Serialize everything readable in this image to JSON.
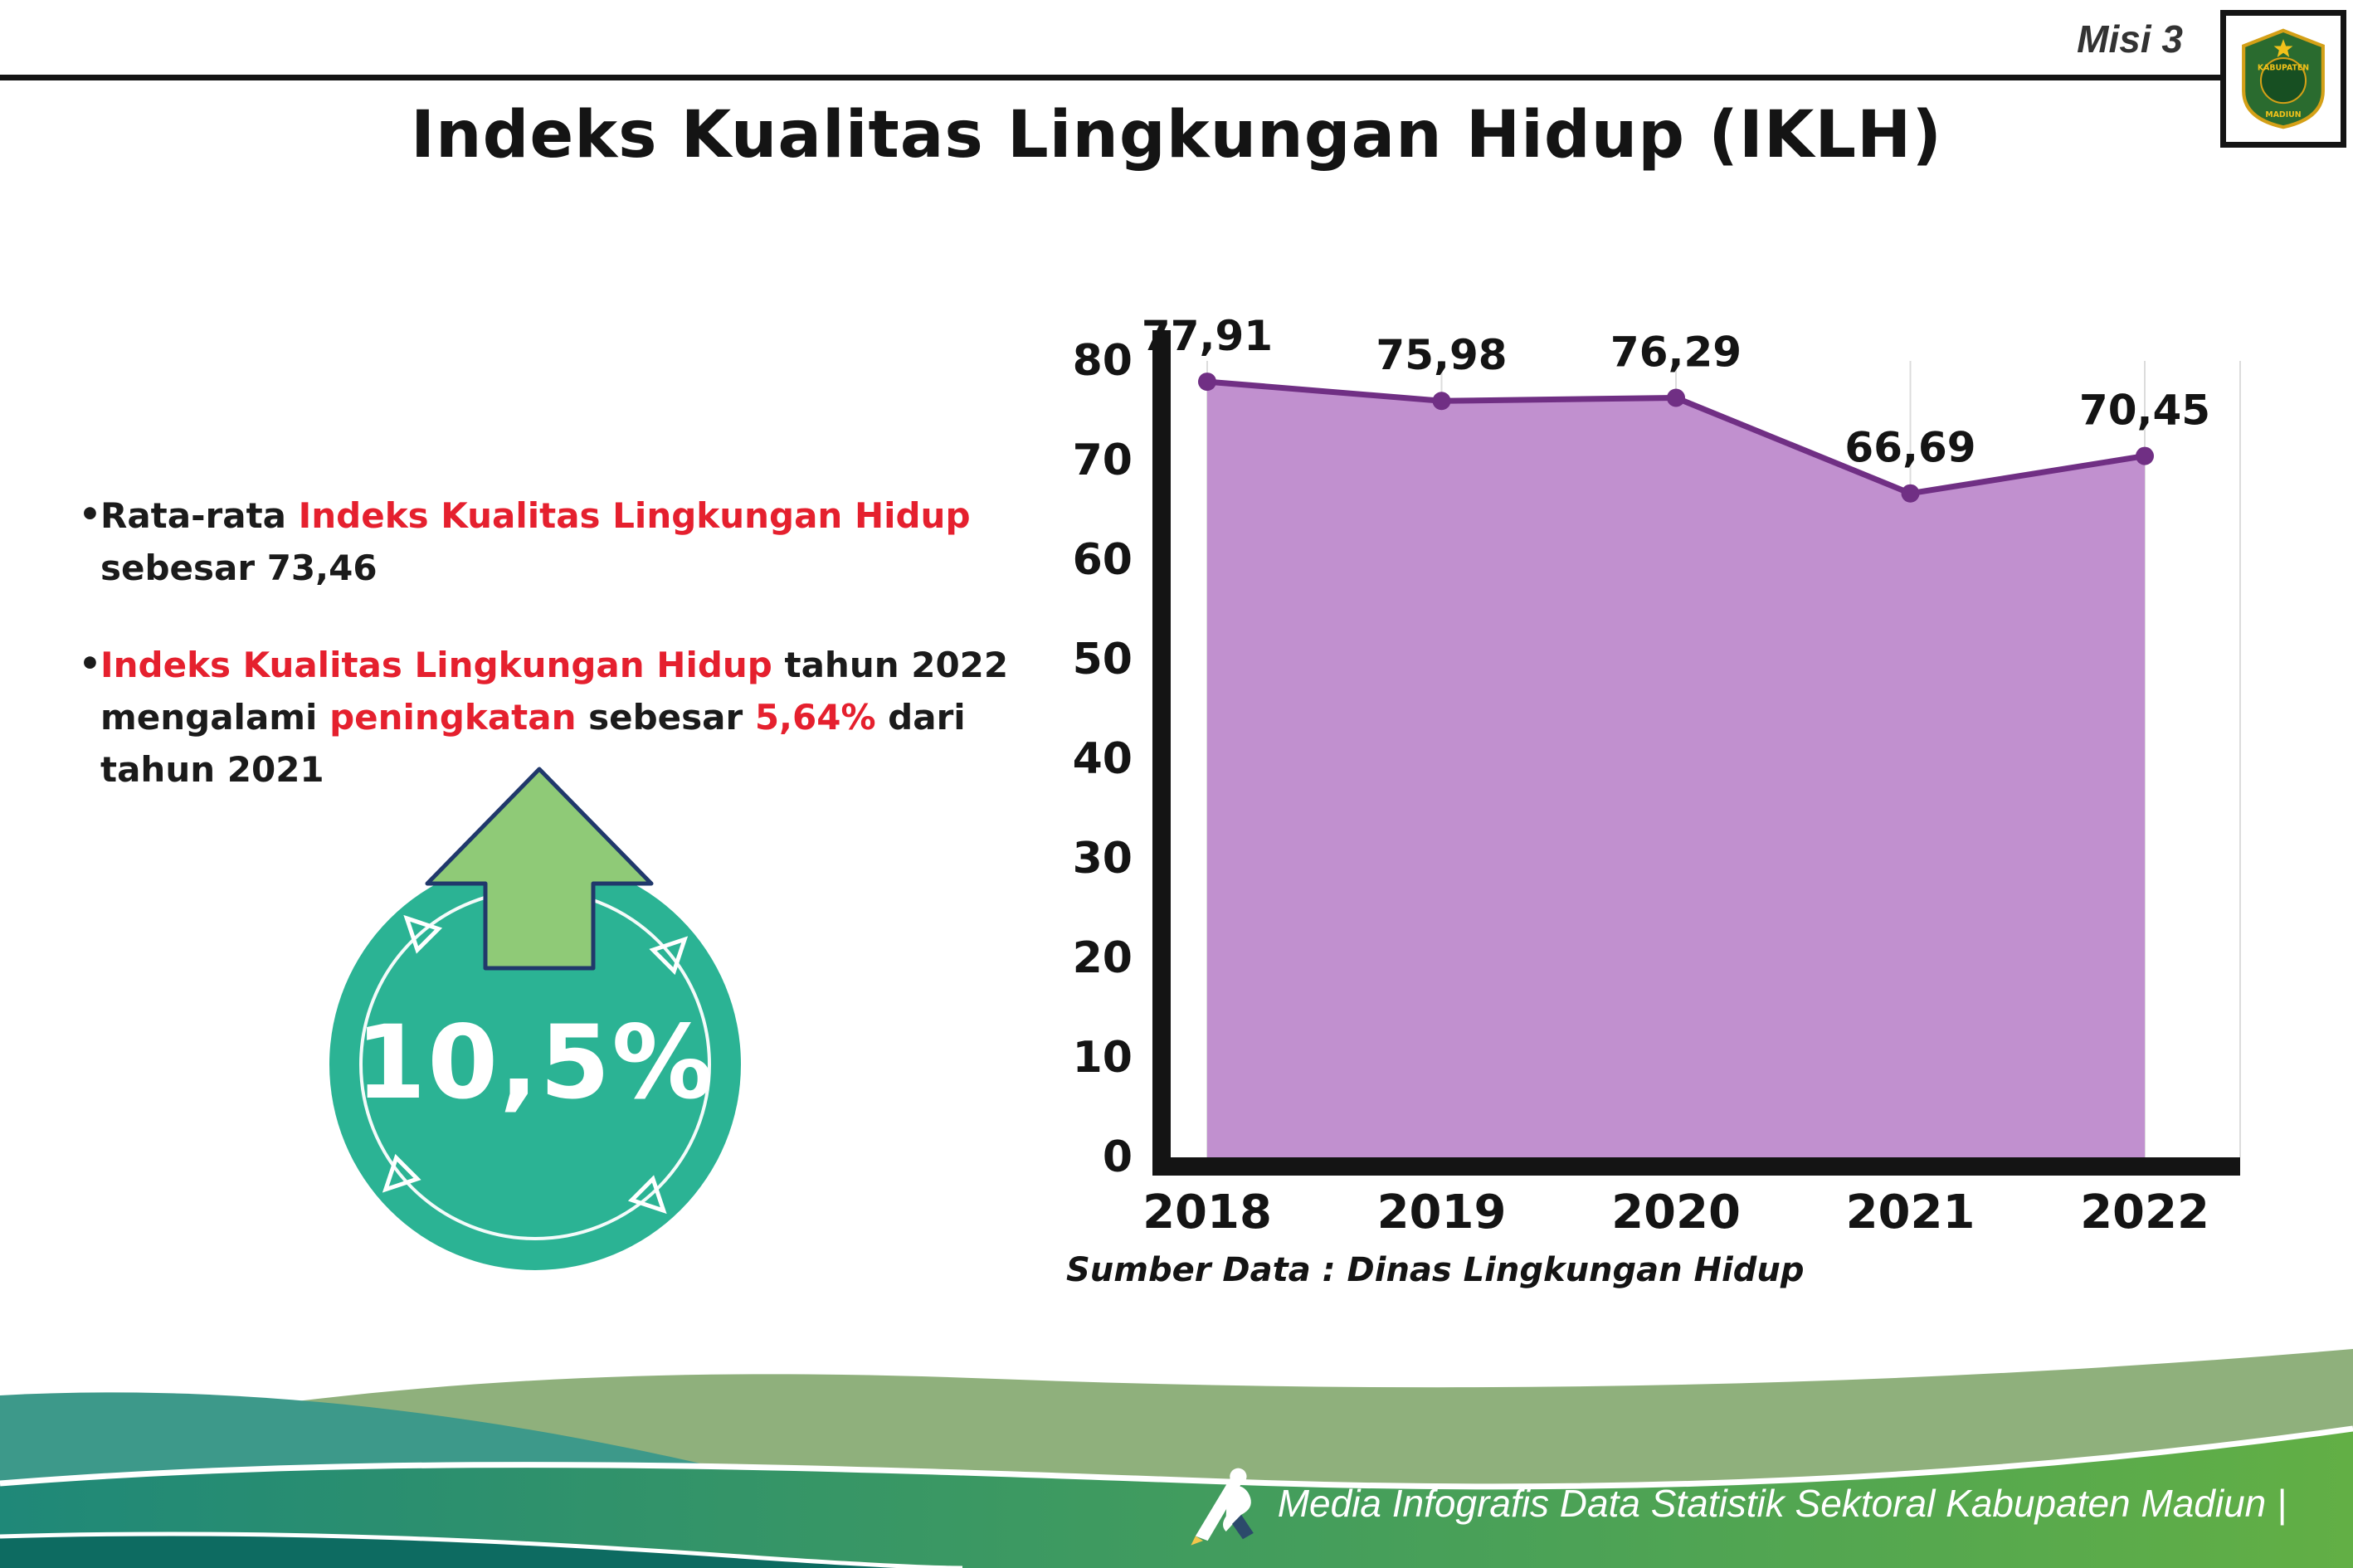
{
  "header": {
    "misi": "Misi 3"
  },
  "title": "Indeks Kualitas Lingkungan Hidup (IKLH)",
  "logo": {
    "top_text": "KABUPATEN",
    "bottom_text": "MADIUN"
  },
  "bullets": [
    {
      "lines": [
        {
          "segments": [
            {
              "t": "Rata-rata ",
              "c": "black"
            },
            {
              "t": "Indeks Kualitas Lingkungan Hidup",
              "c": "red"
            }
          ]
        },
        {
          "segments": [
            {
              "t": "sebesar 73,46",
              "c": "black"
            }
          ]
        }
      ]
    },
    {
      "lines": [
        {
          "segments": [
            {
              "t": "Indeks Kualitas Lingkungan Hidup",
              "c": "red"
            },
            {
              "t": " tahun 2022",
              "c": "black"
            }
          ]
        },
        {
          "segments": [
            {
              "t": "mengalami ",
              "c": "black"
            },
            {
              "t": "peningkatan",
              "c": "red"
            },
            {
              "t": " sebesar ",
              "c": "black"
            },
            {
              "t": "5,64%",
              "c": "red"
            },
            {
              "t": " dari",
              "c": "black"
            }
          ]
        },
        {
          "segments": [
            {
              "t": "tahun 2021",
              "c": "black"
            }
          ]
        }
      ]
    }
  ],
  "badge": {
    "value": "10,5%",
    "direction": "up",
    "circle_color": "#2bb394",
    "arrow_color": "#8fca77"
  },
  "chart_data": {
    "type": "area",
    "categories": [
      "2018",
      "2019",
      "2020",
      "2021",
      "2022"
    ],
    "values": [
      77.91,
      75.98,
      76.29,
      66.69,
      70.45
    ],
    "value_labels": [
      "77,91",
      "75,98",
      "76,29",
      "66,69",
      "70,45"
    ],
    "title": "",
    "xlabel": "",
    "ylabel": "",
    "ylim": [
      0,
      80
    ],
    "yticks": [
      0,
      10,
      20,
      30,
      40,
      50,
      60,
      70,
      80
    ],
    "grid": "vertical-light",
    "legend": "none",
    "fill_color": "#c190cf",
    "line_color": "#702f84",
    "source": "Sumber Data : Dinas Lingkungan Hidup"
  },
  "footer": {
    "credit": "Media Infografis Data Statistik Sektoral Kabupaten Madiun |"
  }
}
